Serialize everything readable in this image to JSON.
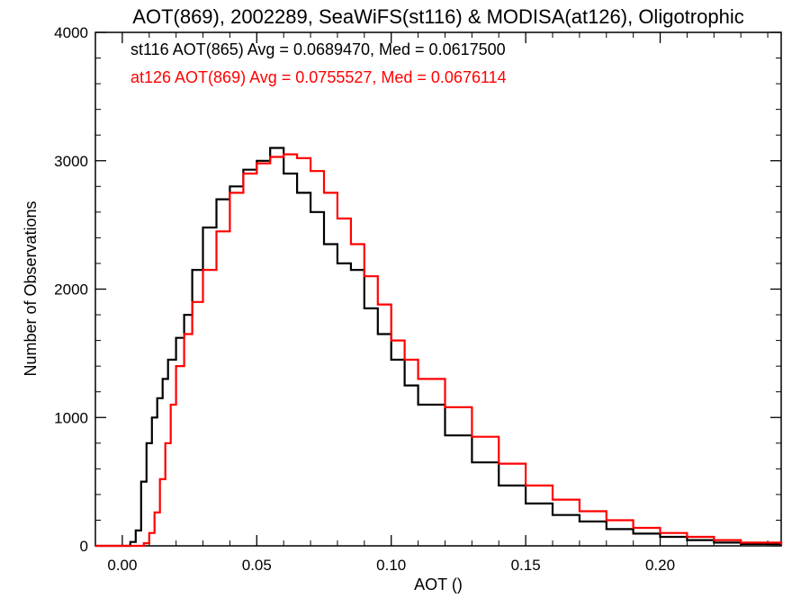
{
  "chart_data": {
    "type": "line",
    "title": "AOT(869), 2002289, SeaWiFS(st116) & MODISA(at126), Oligotrophic",
    "xlabel": "AOT ()",
    "ylabel": "Number of Observations",
    "xlim": [
      -0.01,
      0.245
    ],
    "ylim": [
      0,
      4000
    ],
    "x_ticks": [
      0.0,
      0.05,
      0.1,
      0.15,
      0.2
    ],
    "x_tick_labels": [
      "0.00",
      "0.05",
      "0.10",
      "0.15",
      "0.20"
    ],
    "y_ticks": [
      0,
      1000,
      2000,
      3000,
      4000
    ],
    "y_tick_labels": [
      "0",
      "1000",
      "2000",
      "3000",
      "4000"
    ],
    "grid": false,
    "legend_placement": "top-left",
    "series": [
      {
        "name": "st116 AOT(865) Avg = 0.0689470, Med = 0.0617500",
        "color": "#000000",
        "step": true,
        "x": [
          -0.01,
          0.0,
          0.003,
          0.005,
          0.007,
          0.009,
          0.011,
          0.013,
          0.015,
          0.017,
          0.02,
          0.023,
          0.026,
          0.03,
          0.035,
          0.04,
          0.045,
          0.05,
          0.055,
          0.06,
          0.065,
          0.07,
          0.075,
          0.08,
          0.085,
          0.09,
          0.095,
          0.1,
          0.105,
          0.11,
          0.12,
          0.13,
          0.14,
          0.15,
          0.16,
          0.17,
          0.18,
          0.19,
          0.2,
          0.21,
          0.22,
          0.23,
          0.245
        ],
        "y": [
          0,
          0,
          30,
          120,
          500,
          800,
          1000,
          1150,
          1300,
          1450,
          1620,
          1800,
          2150,
          2480,
          2700,
          2800,
          2930,
          3000,
          3100,
          2900,
          2750,
          2600,
          2350,
          2200,
          2150,
          1850,
          1650,
          1450,
          1250,
          1100,
          860,
          650,
          470,
          330,
          240,
          190,
          130,
          95,
          70,
          45,
          25,
          15,
          5
        ]
      },
      {
        "name": "at126 AOT(869) Avg = 0.0755527, Med = 0.0676114",
        "color": "#ff0000",
        "step": true,
        "x": [
          -0.01,
          0.005,
          0.008,
          0.01,
          0.012,
          0.014,
          0.016,
          0.018,
          0.02,
          0.023,
          0.026,
          0.03,
          0.035,
          0.04,
          0.045,
          0.05,
          0.055,
          0.06,
          0.065,
          0.07,
          0.075,
          0.08,
          0.085,
          0.09,
          0.095,
          0.1,
          0.105,
          0.11,
          0.12,
          0.13,
          0.14,
          0.15,
          0.16,
          0.17,
          0.18,
          0.19,
          0.2,
          0.21,
          0.22,
          0.23,
          0.245
        ],
        "y": [
          0,
          0,
          20,
          100,
          260,
          520,
          800,
          1100,
          1400,
          1650,
          1900,
          2150,
          2450,
          2750,
          2900,
          2980,
          3030,
          3050,
          3020,
          2920,
          2750,
          2550,
          2350,
          2100,
          1880,
          1600,
          1450,
          1300,
          1080,
          850,
          640,
          470,
          360,
          270,
          200,
          140,
          100,
          70,
          45,
          25,
          10
        ]
      }
    ]
  }
}
